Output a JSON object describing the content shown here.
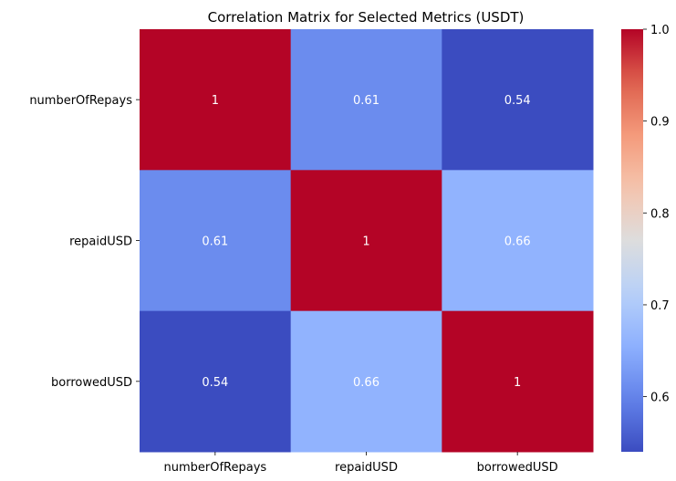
{
  "chart_data": {
    "type": "heatmap",
    "title": "Correlation Matrix for Selected Metrics (USDT)",
    "xlabel": "",
    "ylabel": "",
    "rows": [
      "numberOfRepays",
      "repaidUSD",
      "borrowedUSD"
    ],
    "columns": [
      "numberOfRepays",
      "repaidUSD",
      "borrowedUSD"
    ],
    "values": [
      [
        1,
        0.61,
        0.54
      ],
      [
        0.61,
        1,
        0.66
      ],
      [
        0.54,
        0.66,
        1
      ]
    ],
    "annotations": [
      [
        "1",
        "0.61",
        "0.54"
      ],
      [
        "0.61",
        "1",
        "0.66"
      ],
      [
        "0.54",
        "0.66",
        "1"
      ]
    ],
    "colormap": "coolwarm",
    "colorbar": {
      "range": [
        0.54,
        1.0
      ],
      "ticks": [
        0.6,
        0.7,
        0.8,
        0.9,
        1.0
      ],
      "tick_labels": [
        "0.6",
        "0.7",
        "0.8",
        "0.9",
        "1.0"
      ]
    },
    "grid": false
  }
}
